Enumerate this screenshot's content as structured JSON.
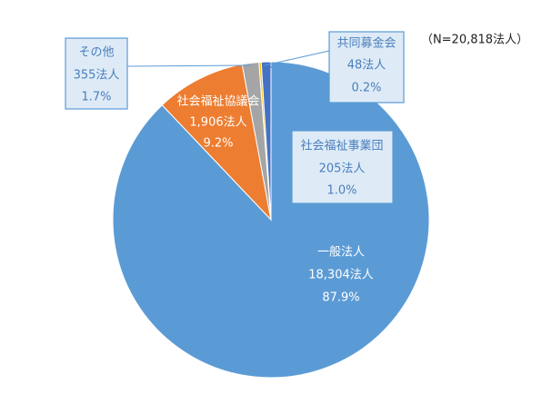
{
  "chart_data": {
    "type": "pie",
    "note": "（N=20,818法人）",
    "categories": [
      "一般法人",
      "社会福祉協議会",
      "その他",
      "共同募金会",
      "社会福祉事業団"
    ],
    "values": [
      18304,
      1906,
      355,
      48,
      205
    ],
    "value_labels": [
      "18,304法人",
      "1,906法人",
      "355法人",
      "48法人",
      "205法人"
    ],
    "percents": [
      87.9,
      9.2,
      1.7,
      0.2,
      1.0
    ],
    "percent_labels": [
      "87.9%",
      "9.2%",
      "1.7%",
      "0.2%",
      "1.0%"
    ],
    "colors": [
      "#5b9bd5",
      "#ed7d31",
      "#a5a5a5",
      "#ffc000",
      "#4472c4"
    ]
  }
}
